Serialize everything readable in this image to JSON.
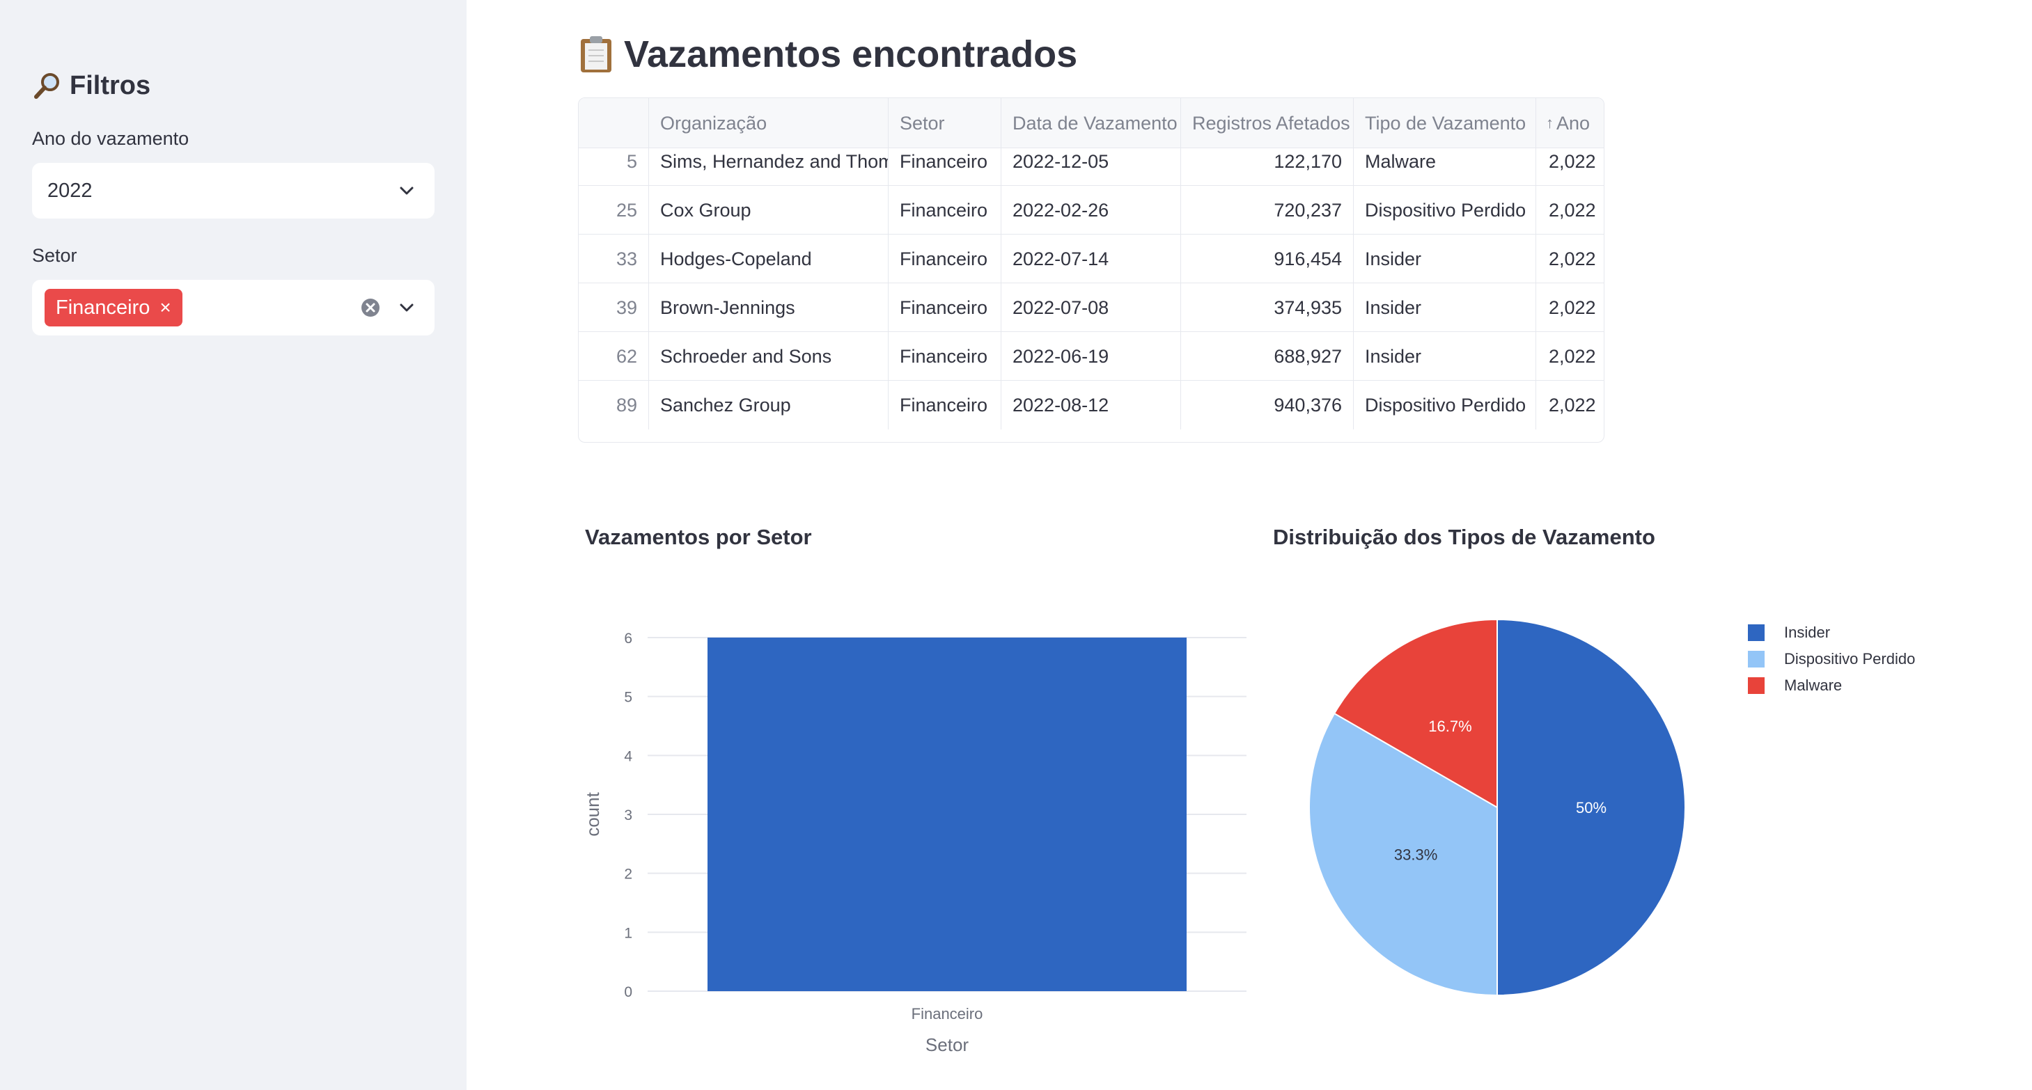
{
  "sidebar": {
    "title": "Filtros",
    "year_label": "Ano do vazamento",
    "year_value": "2022",
    "sector_label": "Setor",
    "sector_chip": "Financeiro",
    "chip_close": "×"
  },
  "main": {
    "title": "Vazamentos encontrados"
  },
  "table": {
    "columns": [
      "",
      "Organização",
      "Setor",
      "Data de Vazamento",
      "Registros Afetados",
      "Tipo de Vazamento",
      "Ano"
    ],
    "sort_indicator": "↑",
    "rows": [
      [
        "5",
        "Sims, Hernandez and Thomas",
        "Financeiro",
        "2022-12-05",
        "122,170",
        "Malware",
        "2,022"
      ],
      [
        "25",
        "Cox Group",
        "Financeiro",
        "2022-02-26",
        "720,237",
        "Dispositivo Perdido",
        "2,022"
      ],
      [
        "33",
        "Hodges-Copeland",
        "Financeiro",
        "2022-07-14",
        "916,454",
        "Insider",
        "2,022"
      ],
      [
        "39",
        "Brown-Jennings",
        "Financeiro",
        "2022-07-08",
        "374,935",
        "Insider",
        "2,022"
      ],
      [
        "62",
        "Schroeder and Sons",
        "Financeiro",
        "2022-06-19",
        "688,927",
        "Insider",
        "2,022"
      ],
      [
        "89",
        "Sanchez Group",
        "Financeiro",
        "2022-08-12",
        "940,376",
        "Dispositivo Perdido",
        "2,022"
      ]
    ]
  },
  "chart_data": [
    {
      "type": "bar",
      "title": "Vazamentos por Setor",
      "categories": [
        "Financeiro"
      ],
      "values": [
        6
      ],
      "xlabel": "Setor",
      "ylabel": "count",
      "ylim": [
        0,
        6
      ],
      "yticks": [
        "0",
        "1",
        "2",
        "3",
        "4",
        "5",
        "6"
      ],
      "grid": true,
      "color": "#2e66c1"
    },
    {
      "type": "pie",
      "title": "Distribuição dos Tipos de Vazamento",
      "labels": [
        "Insider",
        "Dispositivo Perdido",
        "Malware"
      ],
      "values": [
        3,
        2,
        1
      ],
      "data_labels": [
        "50%",
        "33.3%",
        "16.7%"
      ],
      "colors": [
        "#2e66c1",
        "#93c5f7",
        "#e8433a"
      ],
      "legend": "top-right"
    }
  ],
  "icons": {
    "filter": "magnifying-glass-icon",
    "title": "clipboard-icon"
  }
}
